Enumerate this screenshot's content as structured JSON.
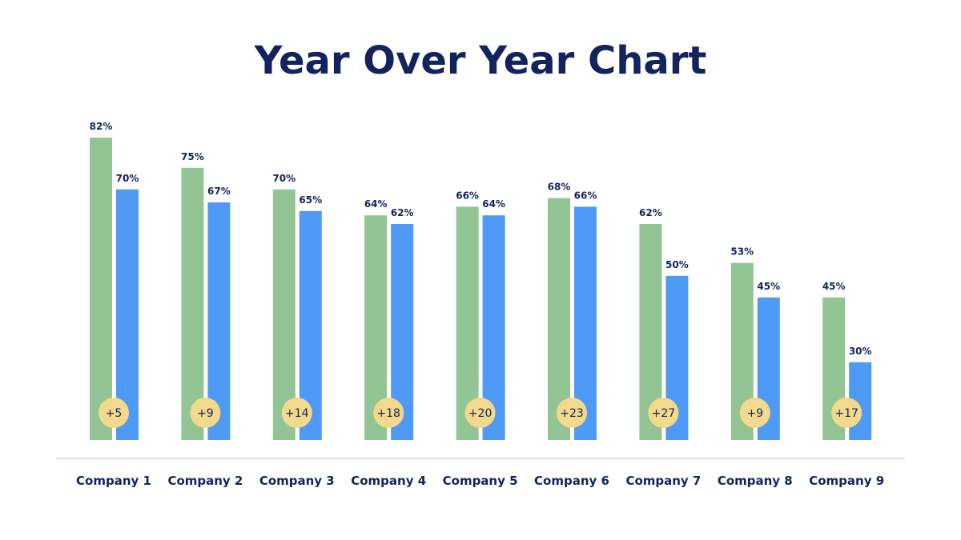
{
  "chart_data": {
    "type": "bar",
    "title": "Year Over Year Chart",
    "categories": [
      "Company 1",
      "Company 2",
      "Company 3",
      "Company 4",
      "Company 5",
      "Company 6",
      "Company 7",
      "Company 8",
      "Company 9"
    ],
    "series": [
      {
        "values": [
          82,
          75,
          70,
          64,
          66,
          68,
          62,
          53,
          45
        ],
        "color": "#93c493"
      },
      {
        "values": [
          70,
          67,
          65,
          62,
          64,
          66,
          50,
          45,
          30
        ],
        "color": "#4f99f7"
      }
    ],
    "data_labels": [
      [
        "82%",
        "75%",
        "70%",
        "64%",
        "66%",
        "68%",
        "62%",
        "53%",
        "45%"
      ],
      [
        "70%",
        "67%",
        "65%",
        "62%",
        "64%",
        "66%",
        "50%",
        "45%",
        "30%"
      ]
    ],
    "badges": [
      "+5",
      "+9",
      "+14",
      "+18",
      "+20",
      "+23",
      "+27",
      "+9",
      "+17"
    ],
    "badge_color": "#f3d98b",
    "text_color": "#13235b",
    "xlabel": "",
    "ylabel": "",
    "ylim": [
      12,
      85
    ],
    "grid": false,
    "legend": "none"
  }
}
